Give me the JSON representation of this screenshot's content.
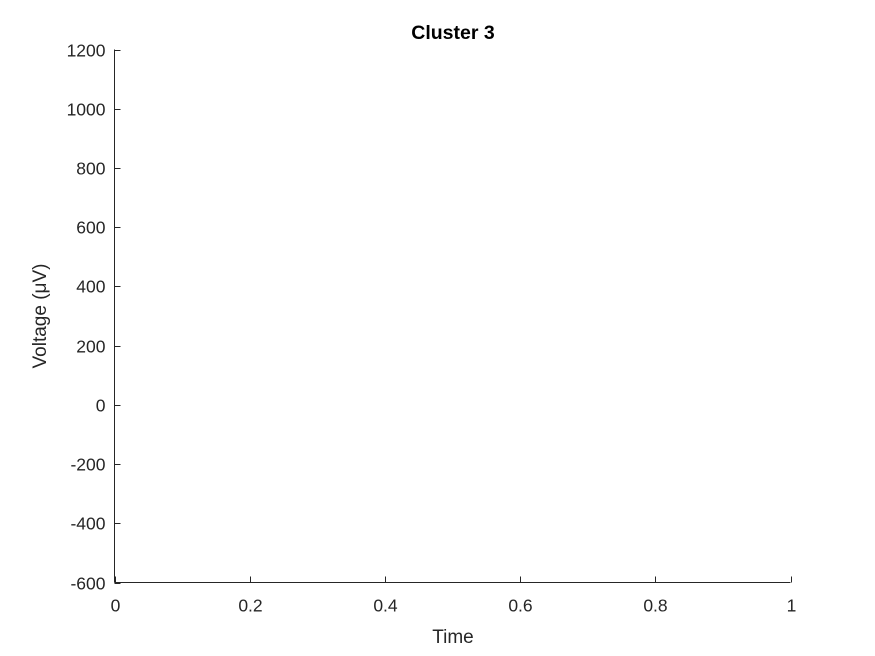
{
  "chart_data": {
    "type": "line",
    "title": "Cluster 3",
    "xlabel": "Time",
    "ylabel": "Voltage (μV)",
    "xlim": [
      0,
      1
    ],
    "ylim": [
      -600,
      1200
    ],
    "xticks": [
      0,
      0.2,
      0.4,
      0.6,
      0.8,
      1
    ],
    "xtick_labels": [
      "0",
      "0.2",
      "0.4",
      "0.6",
      "0.8",
      "1"
    ],
    "yticks": [
      -600,
      -400,
      -200,
      0,
      200,
      400,
      600,
      800,
      1000,
      1200
    ],
    "ytick_labels": [
      "-600",
      "-400",
      "-200",
      "0",
      "200",
      "400",
      "600",
      "800",
      "1000",
      "1200"
    ],
    "series": [],
    "grid": false,
    "legend": "none",
    "colors": {
      "axis": "#262626",
      "title": "#000000",
      "background": "#ffffff"
    }
  }
}
